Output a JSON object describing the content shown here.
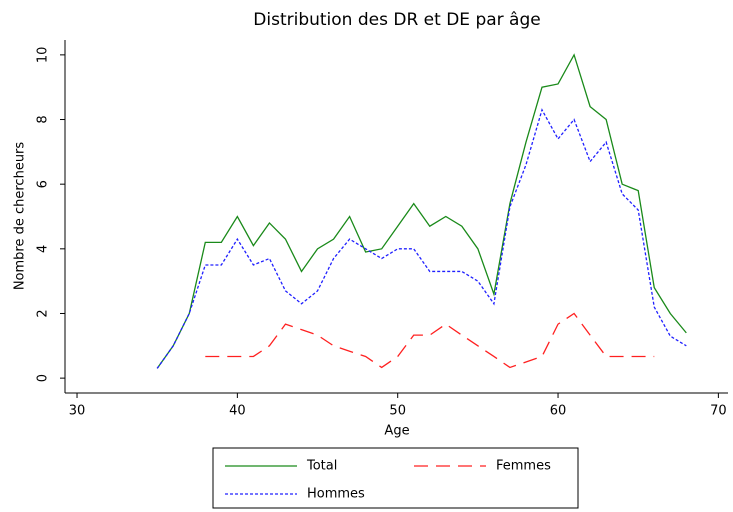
{
  "chart_data": {
    "type": "line",
    "title": "Distribution des DR et DE par âge",
    "xlabel": "Age",
    "ylabel": "Nombre de chercheurs",
    "x": [
      35,
      36,
      37,
      38,
      39,
      40,
      41,
      42,
      43,
      44,
      45,
      46,
      47,
      48,
      49,
      50,
      51,
      52,
      53,
      54,
      55,
      56,
      57,
      58,
      59,
      60,
      61,
      62,
      63,
      64,
      65,
      66,
      67,
      68
    ],
    "series": [
      {
        "name": "Total",
        "color": "#1a8a1a",
        "dash": "solid",
        "values": [
          0.3,
          1.0,
          2.0,
          4.2,
          4.2,
          5.0,
          4.1,
          4.8,
          4.3,
          3.3,
          4.0,
          4.3,
          5.0,
          3.9,
          4.0,
          4.7,
          5.4,
          4.7,
          5.0,
          4.7,
          4.0,
          2.6,
          5.4,
          7.3,
          9.0,
          9.1,
          10.0,
          8.4,
          8.0,
          6.0,
          5.8,
          2.8,
          2.0,
          1.4
        ]
      },
      {
        "name": "Femmes",
        "color": "#ff2020",
        "dash": "long",
        "values": [
          null,
          null,
          null,
          0.67,
          0.67,
          0.67,
          0.67,
          1.0,
          1.67,
          1.5,
          1.33,
          1.0,
          0.83,
          0.67,
          0.33,
          0.67,
          1.33,
          1.33,
          1.67,
          1.33,
          1.0,
          0.67,
          0.33,
          0.5,
          0.67,
          1.67,
          2.0,
          1.33,
          0.67,
          0.67,
          0.67,
          0.67,
          null,
          null
        ]
      },
      {
        "name": "Hommes",
        "color": "#2020ff",
        "dash": "short",
        "values": [
          0.3,
          1.0,
          2.0,
          3.5,
          3.5,
          4.3,
          3.5,
          3.7,
          2.7,
          2.3,
          2.7,
          3.7,
          4.3,
          4.0,
          3.7,
          4.0,
          4.0,
          3.3,
          3.3,
          3.3,
          3.0,
          2.3,
          5.3,
          6.6,
          8.3,
          7.4,
          8.0,
          6.7,
          7.3,
          5.7,
          5.2,
          2.2,
          1.3,
          1.0
        ]
      }
    ],
    "xlim": [
      29.25,
      70.6
    ],
    "xticks": [
      30,
      40,
      50,
      60,
      70
    ],
    "ylim": [
      -0.46,
      10.46
    ],
    "yticks": [
      0,
      2,
      4,
      6,
      8,
      10
    ],
    "grid": false
  }
}
